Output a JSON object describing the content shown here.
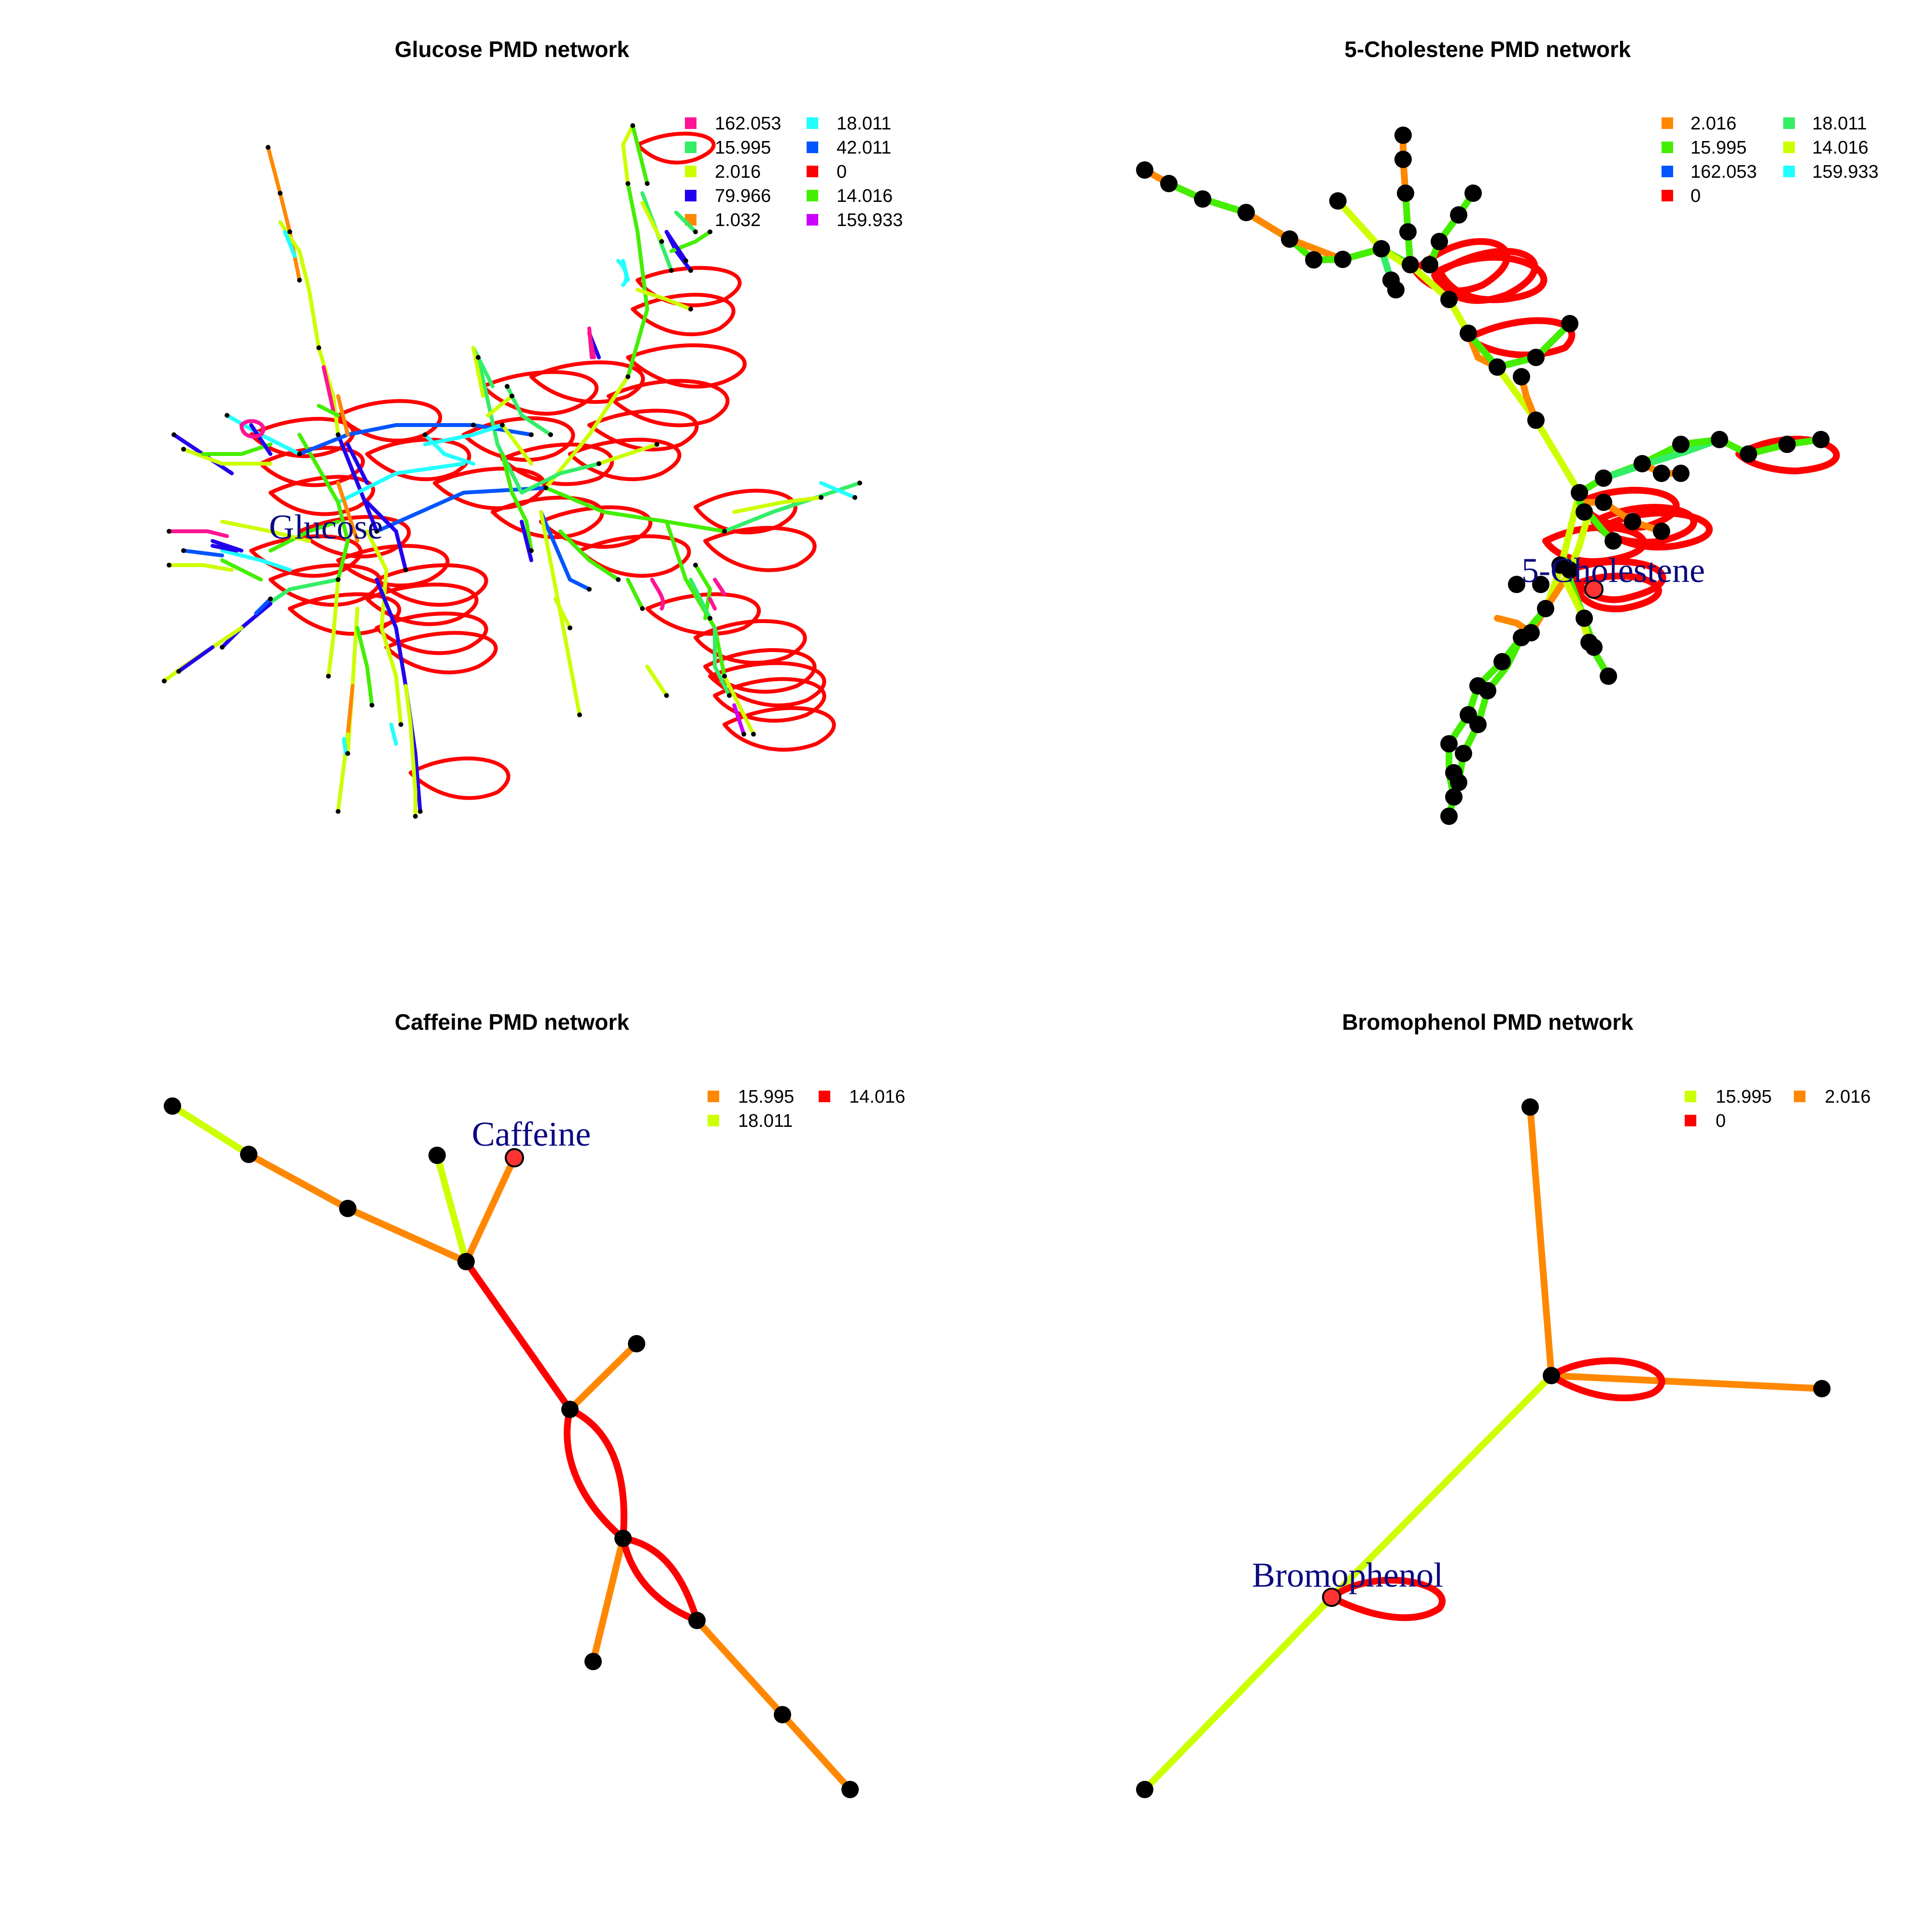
{
  "panels": [
    {
      "id": "glucose",
      "title": "Glucose PMD network",
      "highlight_label": "Glucose",
      "legend": [
        {
          "label": "162.053",
          "color": "#ff1493"
        },
        {
          "label": "15.995",
          "color": "#33ee66"
        },
        {
          "label": "2.016",
          "color": "#ccff00"
        },
        {
          "label": "79.966",
          "color": "#2200ee"
        },
        {
          "label": "1.032",
          "color": "#ff8800"
        },
        {
          "label": "18.011",
          "color": "#22ffff"
        },
        {
          "label": "42.011",
          "color": "#0055ff"
        },
        {
          "label": "0",
          "color": "#ff0000"
        },
        {
          "label": "14.016",
          "color": "#44ee00"
        },
        {
          "label": "159.933",
          "color": "#cc00ff"
        }
      ]
    },
    {
      "id": "cholestene",
      "title": "5-Cholestene PMD network",
      "highlight_label": "5-Cholestene",
      "legend": [
        {
          "label": "2.016",
          "color": "#ff8800"
        },
        {
          "label": "15.995",
          "color": "#44ee00"
        },
        {
          "label": "162.053",
          "color": "#0055ff"
        },
        {
          "label": "0",
          "color": "#ff0000"
        },
        {
          "label": "18.011",
          "color": "#33ee66"
        },
        {
          "label": "14.016",
          "color": "#ccff00"
        },
        {
          "label": "159.933",
          "color": "#22ffff"
        }
      ]
    },
    {
      "id": "caffeine",
      "title": "Caffeine PMD network",
      "highlight_label": "Caffeine",
      "legend": [
        {
          "label": "15.995",
          "color": "#ff8800"
        },
        {
          "label": "18.011",
          "color": "#ccff00"
        },
        {
          "label": "14.016",
          "color": "#ff0000"
        }
      ]
    },
    {
      "id": "bromophenol",
      "title": "Bromophenol PMD network",
      "highlight_label": "Bromophenol",
      "legend": [
        {
          "label": "15.995",
          "color": "#ccff00"
        },
        {
          "label": "0",
          "color": "#ff0000"
        },
        {
          "label": "2.016",
          "color": "#ff8800"
        }
      ]
    }
  ]
}
